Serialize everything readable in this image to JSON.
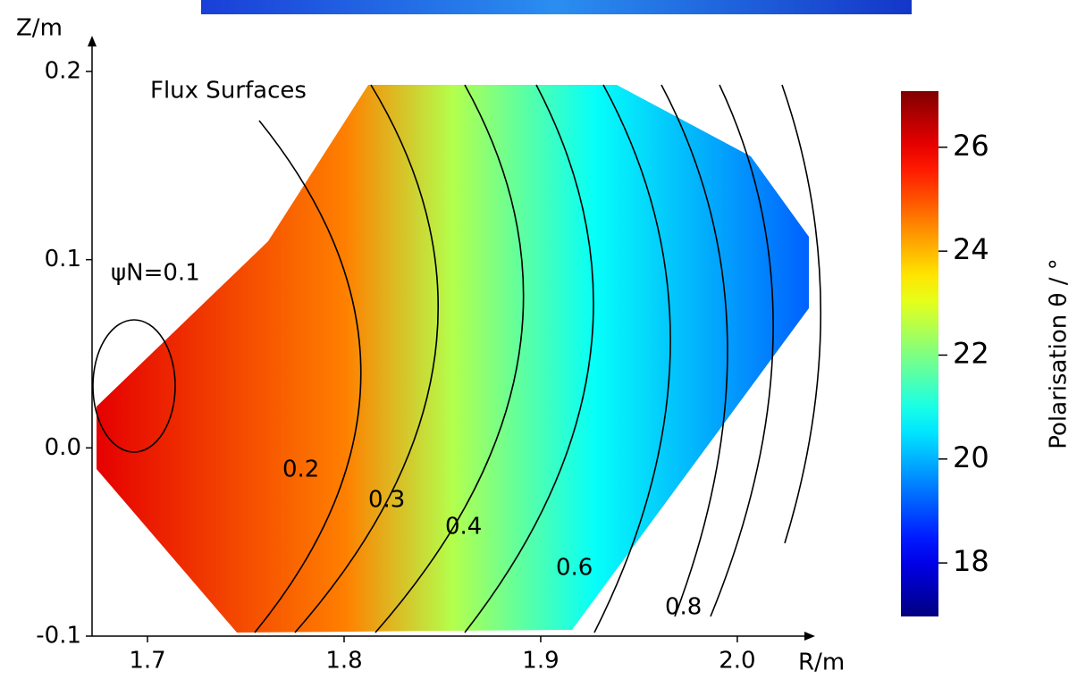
{
  "chart_data": {
    "type": "heatmap",
    "xlabel": "R/m",
    "ylabel": "Z/m",
    "xlim": [
      1.6718,
      2.0364
    ],
    "xticks": [
      1.7,
      1.8,
      1.9,
      {
        "value": 2,
        "label": "2.0"
      }
    ],
    "ylim": [
      -0.1,
      0.2166
    ],
    "yticks": [
      -0.1,
      {
        "value": 0,
        "label": "0.0"
      },
      0.1,
      0.2
    ],
    "colormap": "jet",
    "colorbar": {
      "label": "Polarisation θ / °",
      "lim": [
        16.97,
        27.08
      ],
      "ticks": [
        18,
        20,
        22,
        24,
        26
      ]
    },
    "annotations": [
      "Flux Surfaces",
      "ψN=0.1",
      "0.2",
      "0.3",
      "0.4",
      "0.6",
      "0.8"
    ]
  }
}
